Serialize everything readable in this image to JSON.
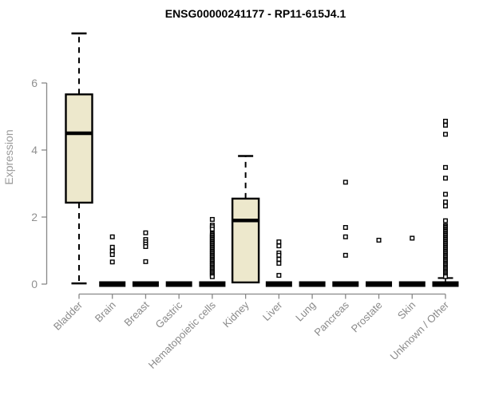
{
  "page": {
    "background": "#ffffff"
  },
  "chart_data": {
    "type": "boxplot",
    "title": "ENSG00000241177 - RP11-615J4.1",
    "ylabel": "Expression",
    "xlabel": "",
    "yticks": [
      0,
      2,
      4,
      6
    ],
    "ylim": [
      0,
      7.6
    ],
    "grid": false,
    "legend": "none",
    "colors": {
      "box_fill": "#EDE8CC",
      "box_stroke": "#000000",
      "axis": "#888888",
      "tick_label": "#909090",
      "category_label": "#8a8a8a",
      "title": "#000000",
      "background": "#ffffff"
    },
    "categories": [
      "Bladder",
      "Brain",
      "Breast",
      "Gastric",
      "Hematopoietic cells",
      "Kidney",
      "Liver",
      "Lung",
      "Pancreas",
      "Prostate",
      "Skin",
      "Unknown / Other"
    ],
    "series": [
      {
        "name": "Bladder",
        "q1": 2.43,
        "median": 4.5,
        "q3": 5.66,
        "whisker_low": 0.02,
        "whisker_high": 7.48,
        "outliers": []
      },
      {
        "name": "Brain",
        "q1": 0,
        "median": 0,
        "q3": 0,
        "whisker_low": 0,
        "whisker_high": 0,
        "outliers": [
          1.41,
          1.1,
          0.98,
          0.88,
          0.66
        ]
      },
      {
        "name": "Breast",
        "q1": 0,
        "median": 0,
        "q3": 0,
        "whisker_low": 0,
        "whisker_high": 0,
        "outliers": [
          1.53,
          1.33,
          1.26,
          1.19,
          1.12,
          0.67
        ]
      },
      {
        "name": "Gastric",
        "q1": 0,
        "median": 0,
        "q3": 0,
        "whisker_low": 0,
        "whisker_high": 0,
        "outliers": []
      },
      {
        "name": "Hematopoietic cells",
        "q1": 0,
        "median": 0,
        "q3": 0,
        "whisker_low": 0,
        "whisker_high": 0,
        "outliers": [
          1.93,
          1.76,
          1.71,
          1.64,
          1.5,
          1.46,
          1.42,
          1.38,
          1.34,
          1.3,
          1.26,
          1.22,
          1.18,
          1.14,
          1.1,
          1.06,
          1.02,
          0.98,
          0.94,
          0.9,
          0.86,
          0.82,
          0.78,
          0.74,
          0.7,
          0.66,
          0.62,
          0.58,
          0.54,
          0.5,
          0.46,
          0.42,
          0.38,
          0.34,
          0.3,
          0.26,
          0.22
        ]
      },
      {
        "name": "Kidney",
        "q1": 0.05,
        "median": 1.9,
        "q3": 2.55,
        "whisker_low": 0.05,
        "whisker_high": 3.82,
        "outliers": []
      },
      {
        "name": "Liver",
        "q1": 0,
        "median": 0,
        "q3": 0,
        "whisker_low": 0,
        "whisker_high": 0,
        "outliers": [
          1.26,
          1.14,
          0.93,
          0.86,
          0.74,
          0.62,
          0.26
        ]
      },
      {
        "name": "Lung",
        "q1": 0,
        "median": 0,
        "q3": 0,
        "whisker_low": 0,
        "whisker_high": 0,
        "outliers": []
      },
      {
        "name": "Pancreas",
        "q1": 0,
        "median": 0,
        "q3": 0,
        "whisker_low": 0,
        "whisker_high": 0,
        "outliers": [
          3.04,
          1.69,
          1.41,
          0.86
        ]
      },
      {
        "name": "Prostate",
        "q1": 0,
        "median": 0,
        "q3": 0,
        "whisker_low": 0,
        "whisker_high": 0,
        "outliers": [
          1.31
        ]
      },
      {
        "name": "Skin",
        "q1": 0,
        "median": 0,
        "q3": 0,
        "whisker_low": 0,
        "whisker_high": 0,
        "outliers": [
          1.37
        ]
      },
      {
        "name": "Unknown / Other",
        "q1": 0,
        "median": 0,
        "q3": 0,
        "whisker_low": 0,
        "whisker_high": 0.18,
        "outliers": [
          4.86,
          4.74,
          4.47,
          3.48,
          3.16,
          2.68,
          2.45,
          2.33,
          1.89,
          1.74,
          1.7,
          1.66,
          1.62,
          1.58,
          1.54,
          1.5,
          1.46,
          1.42,
          1.38,
          1.34,
          1.3,
          1.26,
          1.22,
          1.18,
          1.14,
          1.1,
          1.06,
          1.02,
          0.98,
          0.94,
          0.9,
          0.86,
          0.82,
          0.78,
          0.74,
          0.7,
          0.66,
          0.62,
          0.58,
          0.54,
          0.5,
          0.46,
          0.42,
          0.38,
          0.34,
          0.3,
          0.26,
          0.22
        ]
      }
    ]
  }
}
